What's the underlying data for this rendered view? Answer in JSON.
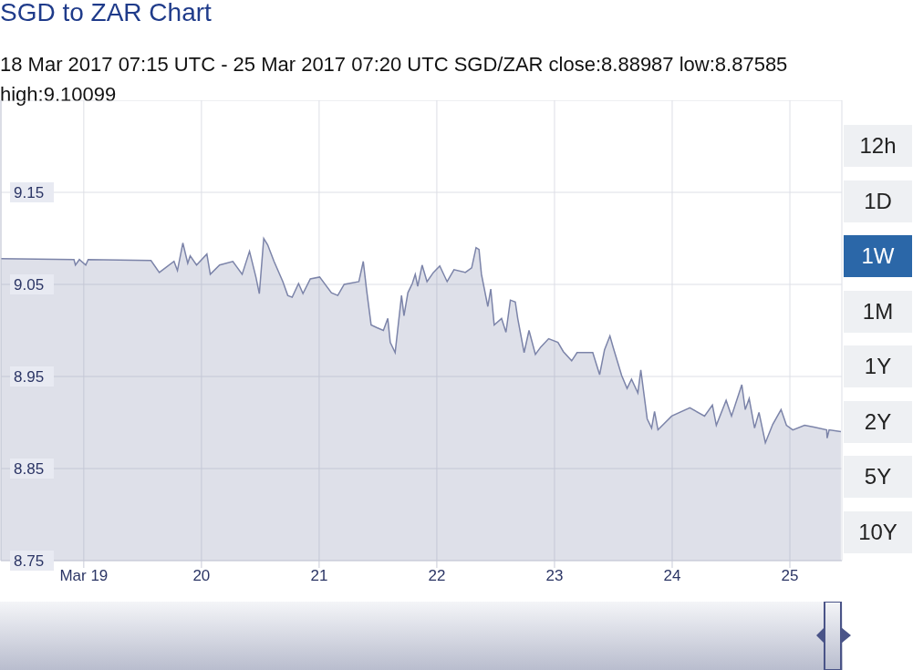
{
  "chart_data": {
    "type": "area",
    "title": "SGD to ZAR Chart",
    "subtitle": "18 Mar 2017 07:15 UTC - 25 Mar 2017 07:20 UTC   SGD/ZAR close:8.88987 low:8.87585 high:9.10099",
    "annotations": [
      "12h",
      "1D",
      "1W",
      "1M",
      "1Y",
      "2Y",
      "5Y",
      "10Y"
    ],
    "x": [
      "2017-03-18T07:06",
      "2017-03-18T22:00",
      "2017-03-18T22:18",
      "2017-03-18T23:06",
      "2017-03-19T00:24",
      "2017-03-19T00:54",
      "2017-03-19T13:42",
      "2017-03-19T15:24",
      "2017-03-19T18:24",
      "2017-03-19T19:06",
      "2017-03-19T20:12",
      "2017-03-19T21:12",
      "2017-03-19T21:42",
      "2017-03-19T23:00",
      "2017-03-20T01:06",
      "2017-03-20T01:48",
      "2017-03-20T03:42",
      "2017-03-20T06:24",
      "2017-03-20T08:18",
      "2017-03-20T09:48",
      "2017-03-20T11:06",
      "2017-03-20T11:48",
      "2017-03-20T12:42",
      "2017-03-20T13:30",
      "2017-03-20T14:48",
      "2017-03-20T16:36",
      "2017-03-20T17:36",
      "2017-03-20T18:30",
      "2017-03-20T19:48",
      "2017-03-20T20:42",
      "2017-03-20T22:12",
      "2017-03-21T00:06",
      "2017-03-21T02:30",
      "2017-03-21T03:48",
      "2017-03-21T05:06",
      "2017-03-21T08:06",
      "2017-03-21T09:00",
      "2017-03-21T09:42",
      "2017-03-21T10:36",
      "2017-03-21T11:48",
      "2017-03-21T13:06",
      "2017-03-21T14:00",
      "2017-03-21T14:30",
      "2017-03-21T15:30",
      "2017-03-21T16:48",
      "2017-03-21T17:18",
      "2017-03-21T18:06",
      "2017-03-21T19:00",
      "2017-03-21T19:36",
      "2017-03-21T20:06",
      "2017-03-21T21:00",
      "2017-03-21T22:00",
      "2017-03-21T23:18",
      "2017-03-22T00:36",
      "2017-03-22T02:06",
      "2017-03-22T03:30",
      "2017-03-22T05:48",
      "2017-03-22T07:06",
      "2017-03-22T08:00",
      "2017-03-22T08:36",
      "2017-03-22T09:06",
      "2017-03-22T10:24",
      "2017-03-22T11:00",
      "2017-03-22T11:42",
      "2017-03-22T13:12",
      "2017-03-22T14:06",
      "2017-03-22T15:00",
      "2017-03-22T16:00",
      "2017-03-22T16:30",
      "2017-03-22T17:48",
      "2017-03-22T18:48",
      "2017-03-22T20:06",
      "2017-03-22T21:12",
      "2017-03-22T22:48",
      "2017-03-23T00:42",
      "2017-03-23T01:48",
      "2017-03-23T03:30",
      "2017-03-23T04:36",
      "2017-03-23T07:48",
      "2017-03-23T09:12",
      "2017-03-23T10:12",
      "2017-03-23T11:18",
      "2017-03-23T12:00",
      "2017-03-23T13:42",
      "2017-03-23T14:48",
      "2017-03-23T15:42",
      "2017-03-23T17:00",
      "2017-03-23T17:36",
      "2017-03-23T18:54",
      "2017-03-23T19:48",
      "2017-03-23T20:24",
      "2017-03-23T21:06",
      "2017-03-23T23:54",
      "2017-03-24T03:36",
      "2017-03-24T06:36",
      "2017-03-24T08:12",
      "2017-03-24T09:00",
      "2017-03-24T11:00",
      "2017-03-24T12:06",
      "2017-03-24T14:12",
      "2017-03-24T14:54",
      "2017-03-24T15:42",
      "2017-03-24T16:48",
      "2017-03-24T17:42",
      "2017-03-24T19:00",
      "2017-03-24T20:30",
      "2017-03-24T22:12",
      "2017-03-24T23:18",
      "2017-03-25T00:36",
      "2017-03-25T03:00",
      "2017-03-25T04:54",
      "2017-03-25T07:30",
      "2017-03-25T07:36",
      "2017-03-25T08:00",
      "2017-03-25T10:24"
    ],
    "series": [
      {
        "color": "#7c84a9",
        "values": [
          9.078,
          9.077,
          9.071,
          9.077,
          9.071,
          9.077,
          9.076,
          9.063,
          9.075,
          9.065,
          9.095,
          9.073,
          9.081,
          9.071,
          9.083,
          9.061,
          9.071,
          9.075,
          9.061,
          9.086,
          9.058,
          9.04,
          9.1,
          9.093,
          9.075,
          9.053,
          9.038,
          9.036,
          9.051,
          9.04,
          9.056,
          9.058,
          9.041,
          9.038,
          9.05,
          9.053,
          9.075,
          9.043,
          9.006,
          9.003,
          9.0,
          9.013,
          8.987,
          8.976,
          9.038,
          9.016,
          9.041,
          9.051,
          9.061,
          9.048,
          9.071,
          9.053,
          9.063,
          9.07,
          9.053,
          9.066,
          9.063,
          9.068,
          9.09,
          9.088,
          9.061,
          9.026,
          9.045,
          9.006,
          9.013,
          8.998,
          9.033,
          9.031,
          9.013,
          8.976,
          9.0,
          8.974,
          8.982,
          8.991,
          8.987,
          8.977,
          8.967,
          8.976,
          8.976,
          8.952,
          8.979,
          8.994,
          8.981,
          8.951,
          8.937,
          8.947,
          8.932,
          8.957,
          8.904,
          8.894,
          8.912,
          8.892,
          8.907,
          8.916,
          8.907,
          8.919,
          8.897,
          8.924,
          8.907,
          8.941,
          8.914,
          8.926,
          8.894,
          8.911,
          8.878,
          8.898,
          8.914,
          8.897,
          8.892,
          8.897,
          8.895,
          8.892,
          8.883,
          8.892,
          8.89
        ]
      }
    ],
    "xlim": [
      "2017-03-18T07:06",
      "2017-03-25T10:36"
    ],
    "xticks": [
      {
        "value": "2017-03-19",
        "label": "Mar 19"
      },
      {
        "value": "2017-03-20",
        "label": "20"
      },
      {
        "value": "2017-03-21",
        "label": "21"
      },
      {
        "value": "2017-03-22",
        "label": "22"
      },
      {
        "value": "2017-03-23",
        "label": "23"
      },
      {
        "value": "2017-03-24",
        "label": "24"
      },
      {
        "value": "2017-03-25",
        "label": "25"
      }
    ],
    "ylim": [
      8.75,
      9.25
    ],
    "yticks": [
      8.75,
      8.85,
      8.95,
      9.05,
      9.15
    ],
    "grid": true
  }
}
